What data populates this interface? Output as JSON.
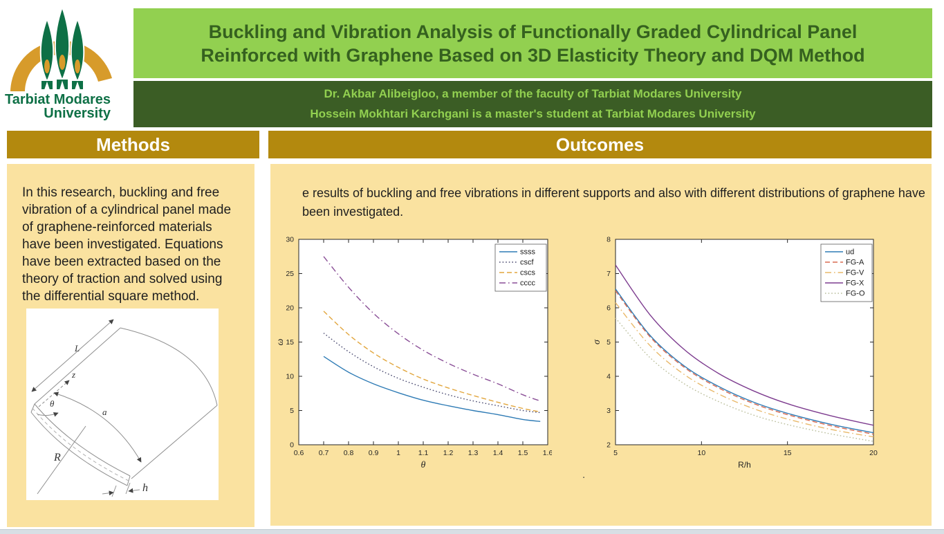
{
  "logo": {
    "line1": "Tarbiat Modares",
    "line2": "University",
    "arch_color": "#d79b2b",
    "tree_color": "#0e7046"
  },
  "header": {
    "title_line1": "Buckling and Vibration Analysis of Functionally Graded Cylindrical Panel",
    "title_line2": "Reinforced with Graphene Based on 3D Elasticity Theory and DQM Method",
    "title_bg": "#92d050",
    "title_text_color": "#35611f",
    "authors_bg": "#3b5d25",
    "authors_text_color": "#92d050",
    "author_line1": "Dr. Akbar Alibeigloo, a member of the faculty of Tarbiat Modares University",
    "author_line2": "Hossein Mokhtari Karchgani is a master's student at Tarbiat Modares University"
  },
  "methods": {
    "header": "Methods",
    "header_bg": "#b3890e",
    "body_bg": "#fae2a0",
    "body": "In this research, buckling and free vibration of a cylindrical panel made of graphene-reinforced materials have been investigated. Equations have been extracted based on the theory of traction and solved using the differential square method.",
    "diagram_labels": {
      "L": "L",
      "z": "z",
      "theta": "θ",
      "a": "a",
      "R": "R",
      "h": "h"
    }
  },
  "outcomes": {
    "header": "Outcomes",
    "body": "e results of buckling and free vibrations in different supports and also with different distributions of graphene have been investigated.",
    "stray_dot": "."
  },
  "chart_data": [
    {
      "type": "line",
      "title": "",
      "xlabel": "θ",
      "ylabel": "ω",
      "xlabel_style": "italic",
      "xlim": [
        0.6,
        1.6
      ],
      "ylim": [
        0,
        30
      ],
      "xticks": [
        0.6,
        0.7,
        0.8,
        0.9,
        1,
        1.1,
        1.2,
        1.3,
        1.4,
        1.5,
        1.6
      ],
      "yticks": [
        0,
        5,
        10,
        15,
        20,
        25,
        30
      ],
      "grid": false,
      "legend_position": "top-right",
      "x": [
        0.7,
        0.8,
        0.9,
        1.0,
        1.1,
        1.2,
        1.3,
        1.4,
        1.5,
        1.57
      ],
      "series": [
        {
          "name": "ssss",
          "color": "#2e7bb5",
          "style": "solid",
          "values": [
            12.9,
            10.6,
            8.9,
            7.6,
            6.5,
            5.7,
            5.0,
            4.4,
            3.7,
            3.4
          ]
        },
        {
          "name": "cscf",
          "color": "#4a4a70",
          "style": "dotted",
          "values": [
            16.3,
            13.6,
            11.4,
            9.7,
            8.4,
            7.3,
            6.4,
            5.7,
            5.0,
            4.7
          ]
        },
        {
          "name": "cscs",
          "color": "#e2a63d",
          "style": "dashed",
          "values": [
            19.5,
            16.1,
            13.4,
            11.3,
            9.6,
            8.3,
            7.2,
            6.2,
            5.3,
            4.8
          ]
        },
        {
          "name": "cccc",
          "color": "#8a4f97",
          "style": "dashdot",
          "values": [
            27.5,
            23.0,
            19.2,
            16.2,
            13.8,
            11.9,
            10.3,
            8.9,
            7.3,
            6.4
          ]
        }
      ]
    },
    {
      "type": "line",
      "title": "",
      "xlabel": "R/h",
      "ylabel": "σ",
      "xlabel_style": "plain",
      "xlim": [
        5,
        20
      ],
      "ylim": [
        2,
        8
      ],
      "xticks": [
        5,
        10,
        15,
        20
      ],
      "yticks": [
        2,
        3,
        4,
        5,
        6,
        7,
        8
      ],
      "grid": false,
      "legend_position": "top-right",
      "x": [
        5,
        7,
        9,
        11,
        13,
        15,
        17.5,
        20
      ],
      "series": [
        {
          "name": "ud",
          "color": "#2e7bb5",
          "style": "solid",
          "values": [
            6.55,
            5.2,
            4.3,
            3.7,
            3.25,
            2.92,
            2.6,
            2.35
          ]
        },
        {
          "name": "FG-A",
          "color": "#d96a50",
          "style": "dashed",
          "values": [
            6.5,
            5.16,
            4.26,
            3.66,
            3.21,
            2.88,
            2.56,
            2.31
          ]
        },
        {
          "name": "FG-V",
          "color": "#e9b96a",
          "style": "dashdot",
          "values": [
            6.15,
            4.9,
            4.05,
            3.48,
            3.06,
            2.75,
            2.45,
            2.23
          ]
        },
        {
          "name": "FG-X",
          "color": "#7d3c8f",
          "style": "solid",
          "values": [
            7.25,
            5.8,
            4.78,
            4.08,
            3.58,
            3.2,
            2.85,
            2.57
          ]
        },
        {
          "name": "FG-O",
          "color": "#b9bd9a",
          "style": "dotted",
          "values": [
            5.7,
            4.55,
            3.78,
            3.26,
            2.87,
            2.59,
            2.32,
            2.1
          ]
        }
      ]
    }
  ]
}
